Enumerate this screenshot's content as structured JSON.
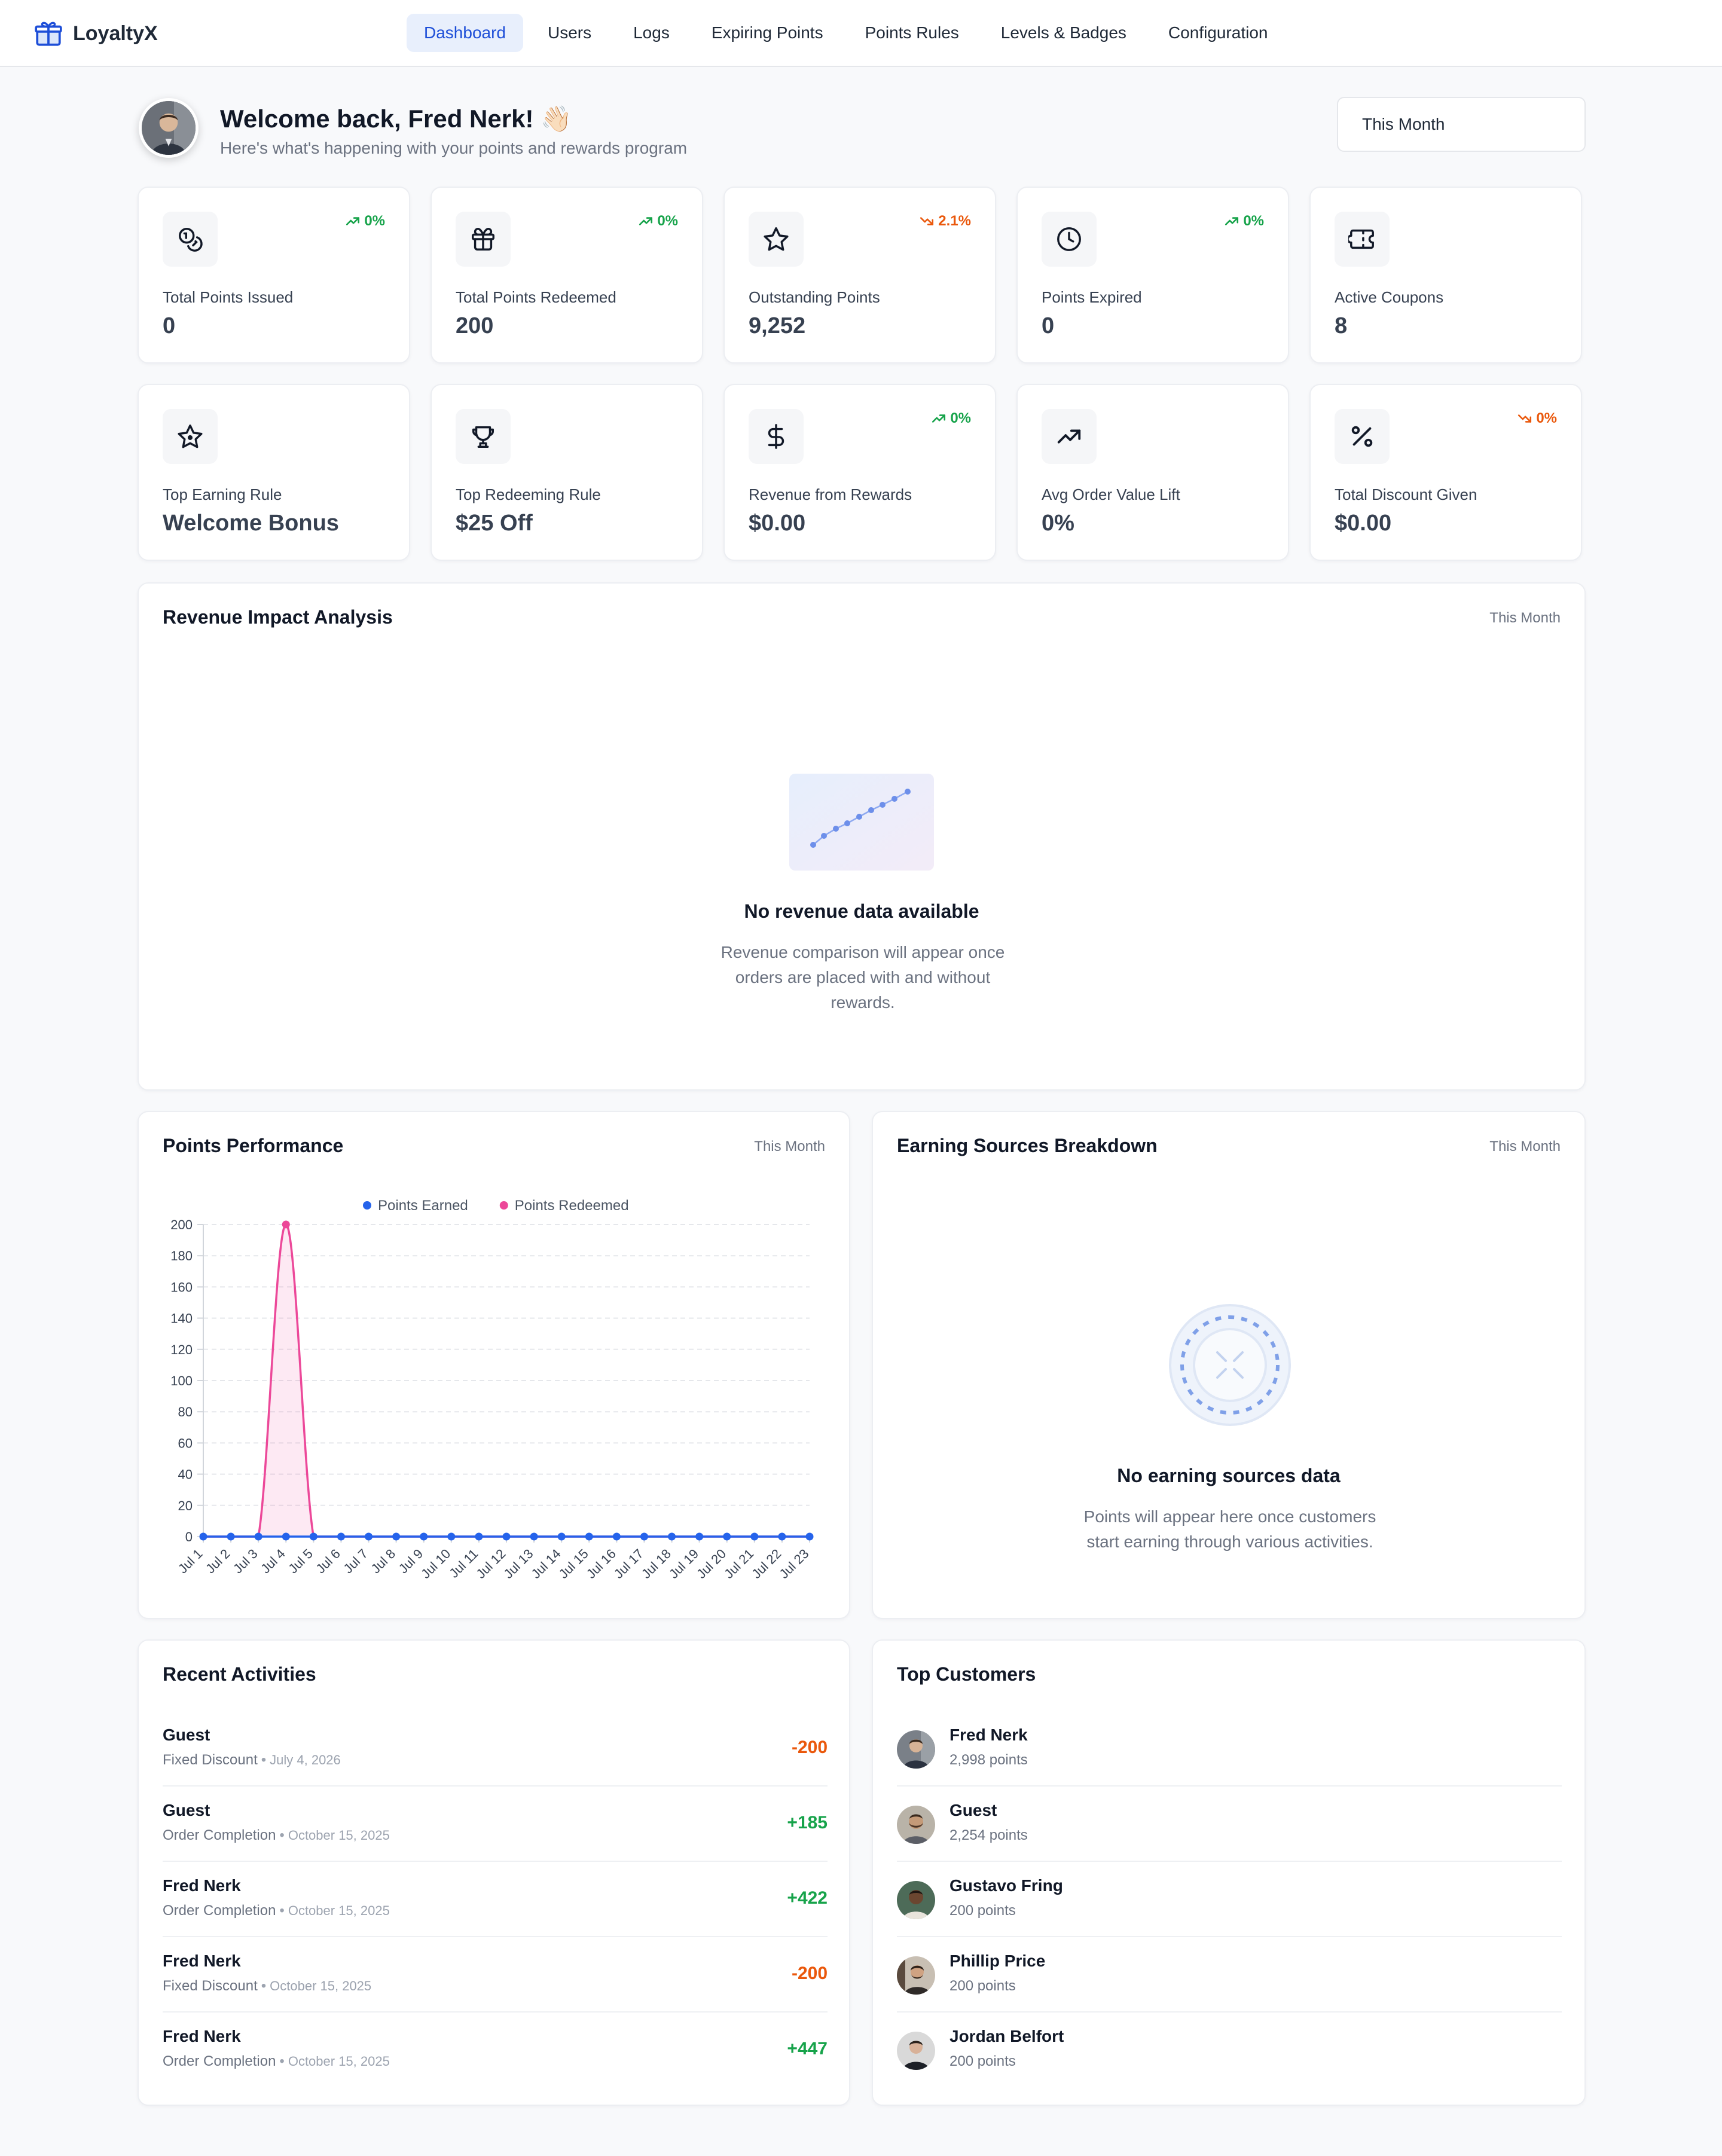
{
  "app": {
    "name": "LoyaltyX"
  },
  "nav": [
    {
      "label": "Dashboard",
      "active": true
    },
    {
      "label": "Users"
    },
    {
      "label": "Logs"
    },
    {
      "label": "Expiring Points"
    },
    {
      "label": "Points Rules"
    },
    {
      "label": "Levels & Badges"
    },
    {
      "label": "Configuration"
    }
  ],
  "welcome": {
    "title": "Welcome back, Fred Nerk! 👋🏻",
    "subtitle": "Here's what's happening with your points and rewards program",
    "period": "This Month"
  },
  "stats": [
    {
      "label": "Total Points Issued",
      "value": "0",
      "trend": "0%",
      "trend_dir": "up",
      "icon": "coins-icon"
    },
    {
      "label": "Total Points Redeemed",
      "value": "200",
      "trend": "0%",
      "trend_dir": "up",
      "icon": "gift-icon"
    },
    {
      "label": "Outstanding Points",
      "value": "9,252",
      "trend": "2.1%",
      "trend_dir": "down",
      "icon": "star-icon"
    },
    {
      "label": "Points Expired",
      "value": "0",
      "trend": "0%",
      "trend_dir": "up",
      "icon": "clock-icon"
    },
    {
      "label": "Active Coupons",
      "value": "8",
      "trend": "",
      "icon": "ticket-icon"
    },
    {
      "label": "Top Earning Rule",
      "value": "Welcome Bonus",
      "trend": "",
      "icon": "sparkle-star-icon"
    },
    {
      "label": "Top Redeeming Rule",
      "value": "$25 Off",
      "trend": "",
      "icon": "trophy-icon"
    },
    {
      "label": "Revenue from Rewards",
      "value": "$0.00",
      "trend": "0%",
      "trend_dir": "up",
      "icon": "dollar-icon"
    },
    {
      "label": "Avg Order Value Lift",
      "value": "0%",
      "trend": "",
      "icon": "trending-up-icon"
    },
    {
      "label": "Total Discount Given",
      "value": "$0.00",
      "trend": "0%",
      "trend_dir": "down",
      "icon": "percent-icon"
    }
  ],
  "revenue_panel": {
    "title": "Revenue Impact Analysis",
    "period": "This Month",
    "empty_title": "No revenue data available",
    "empty_desc": "Revenue comparison will appear once orders are placed with and without rewards."
  },
  "points_panel": {
    "title": "Points Performance",
    "period": "This Month"
  },
  "sources_panel": {
    "title": "Earning Sources Breakdown",
    "period": "This Month",
    "empty_title": "No earning sources data",
    "empty_desc": "Points will appear here once customers start earning through various activities."
  },
  "chart_data": {
    "type": "area",
    "categories": [
      "Jul 1",
      "Jul 2",
      "Jul 3",
      "Jul 4",
      "Jul 5",
      "Jul 6",
      "Jul 7",
      "Jul 8",
      "Jul 9",
      "Jul 10",
      "Jul 11",
      "Jul 12",
      "Jul 13",
      "Jul 14",
      "Jul 15",
      "Jul 16",
      "Jul 17",
      "Jul 18",
      "Jul 19",
      "Jul 20",
      "Jul 21",
      "Jul 22",
      "Jul 23"
    ],
    "series": [
      {
        "name": "Points Earned",
        "color": "#2563eb",
        "values": [
          0,
          0,
          0,
          0,
          0,
          0,
          0,
          0,
          0,
          0,
          0,
          0,
          0,
          0,
          0,
          0,
          0,
          0,
          0,
          0,
          0,
          0,
          0
        ]
      },
      {
        "name": "Points Redeemed",
        "color": "#ec4899",
        "values": [
          0,
          0,
          0,
          200,
          0,
          0,
          0,
          0,
          0,
          0,
          0,
          0,
          0,
          0,
          0,
          0,
          0,
          0,
          0,
          0,
          0,
          0,
          0
        ]
      }
    ],
    "ylim": [
      0,
      200
    ],
    "yticks": [
      "0",
      "20",
      "40",
      "60",
      "80",
      "100",
      "120",
      "140",
      "160",
      "180",
      "200"
    ],
    "grid": true,
    "legend": "top-center"
  },
  "activities": {
    "title": "Recent Activities",
    "items": [
      {
        "name": "Guest",
        "type": "Fixed Discount",
        "date": "July 4, 2026",
        "amount": "-200",
        "sign": "neg"
      },
      {
        "name": "Guest",
        "type": "Order Completion",
        "date": "October 15, 2025",
        "amount": "+185",
        "sign": "pos"
      },
      {
        "name": "Fred Nerk",
        "type": "Order Completion",
        "date": "October 15, 2025",
        "amount": "+422",
        "sign": "pos"
      },
      {
        "name": "Fred Nerk",
        "type": "Fixed Discount",
        "date": "October 15, 2025",
        "amount": "-200",
        "sign": "neg"
      },
      {
        "name": "Fred Nerk",
        "type": "Order Completion",
        "date": "October 15, 2025",
        "amount": "+447",
        "sign": "pos"
      }
    ]
  },
  "customers": {
    "title": "Top Customers",
    "items": [
      {
        "name": "Fred Nerk",
        "points": "2,998 points"
      },
      {
        "name": "Guest",
        "points": "2,254 points"
      },
      {
        "name": "Gustavo Fring",
        "points": "200 points"
      },
      {
        "name": "Phillip Price",
        "points": "200 points"
      },
      {
        "name": "Jordan Belfort",
        "points": "200 points"
      }
    ]
  },
  "colors": {
    "accent": "#1d4ed8",
    "positive": "#16a34a",
    "negative": "#ea580c",
    "redeemed": "#ec4899",
    "earned": "#2563eb"
  }
}
